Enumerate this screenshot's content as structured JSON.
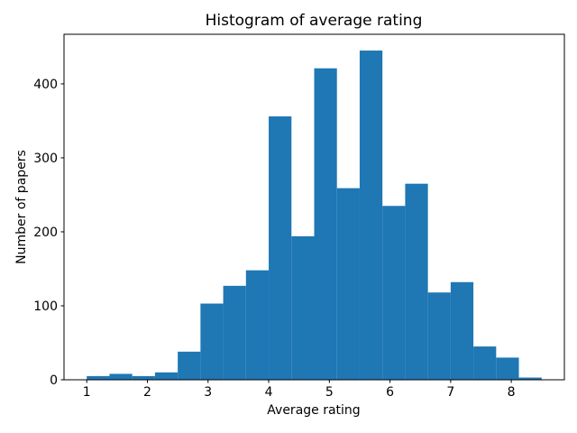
{
  "figure": {
    "background": "#ffffff"
  },
  "chart_data": {
    "type": "bar",
    "subtype": "histogram",
    "title": "Histogram of average rating",
    "xlabel": "Average rating",
    "ylabel": "Number of papers",
    "bar_color": "#1f77b4",
    "axis_color": "#000000",
    "bin_edges": [
      1.0,
      1.375,
      1.75,
      2.125,
      2.5,
      2.875,
      3.25,
      3.625,
      4.0,
      4.375,
      4.75,
      5.125,
      5.5,
      5.875,
      6.25,
      6.625,
      7.0,
      7.375,
      7.75,
      8.125,
      8.5
    ],
    "values": [
      5,
      8,
      5,
      10,
      38,
      103,
      127,
      148,
      356,
      194,
      421,
      259,
      445,
      235,
      265,
      118,
      132,
      45,
      30,
      3
    ],
    "x_ticks": [
      1,
      2,
      3,
      4,
      5,
      6,
      7,
      8
    ],
    "y_ticks": [
      0,
      100,
      200,
      300,
      400
    ],
    "xlim": [
      0.625,
      8.875
    ],
    "ylim": [
      0,
      467
    ],
    "grid": false,
    "legend": null
  }
}
